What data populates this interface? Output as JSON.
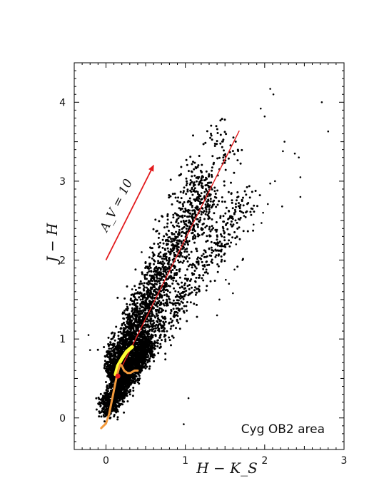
{
  "chart_data": {
    "type": "scatter",
    "xlabel": "H − K_S",
    "ylabel": "J − H",
    "xlim": [
      -0.4,
      3.0
    ],
    "ylim": [
      -0.4,
      4.5
    ],
    "xticks": [
      0,
      1,
      2,
      3
    ],
    "yticks": [
      0,
      1,
      2,
      3,
      4
    ],
    "annotation": "Cyg OB2 area",
    "reddening_vector": {
      "label": "A_V = 10",
      "start": [
        0.0,
        2.0
      ],
      "end": [
        0.6,
        3.2
      ],
      "color": "#e31a1c"
    },
    "reddening_line": {
      "start": [
        0.2,
        0.65
      ],
      "end": [
        1.68,
        3.64
      ],
      "color": "#e31a1c"
    },
    "giant_branch": {
      "color": "#ffff33",
      "points": [
        [
          0.12,
          0.55
        ],
        [
          0.15,
          0.66
        ],
        [
          0.2,
          0.75
        ],
        [
          0.26,
          0.84
        ],
        [
          0.33,
          0.9
        ]
      ]
    },
    "dwarf_sequence": {
      "color": "#f39a3c",
      "points": [
        [
          -0.06,
          -0.13
        ],
        [
          0.0,
          -0.07
        ],
        [
          0.04,
          0.05
        ],
        [
          0.08,
          0.25
        ],
        [
          0.12,
          0.45
        ],
        [
          0.14,
          0.54
        ],
        [
          0.16,
          0.62
        ],
        [
          0.18,
          0.68
        ],
        [
          0.2,
          0.66
        ],
        [
          0.23,
          0.6
        ],
        [
          0.27,
          0.57
        ],
        [
          0.31,
          0.57
        ],
        [
          0.36,
          0.6
        ],
        [
          0.4,
          0.6
        ]
      ]
    },
    "marker_point": {
      "x": 0.15,
      "y": 0.53,
      "color": "#e31a1c"
    },
    "scatter_cloud": {
      "description_color": "#000000",
      "density_model": "stars scattered along reddening direction, slope 2.0",
      "outliers": [
        [
          2.72,
          4.0
        ],
        [
          2.8,
          3.63
        ],
        [
          2.07,
          4.17
        ],
        [
          2.11,
          4.1
        ],
        [
          1.95,
          3.92
        ],
        [
          2.0,
          3.82
        ],
        [
          2.25,
          3.5
        ],
        [
          2.23,
          3.38
        ],
        [
          2.38,
          3.35
        ],
        [
          2.43,
          3.3
        ],
        [
          2.45,
          3.05
        ],
        [
          2.07,
          2.97
        ],
        [
          2.13,
          3.0
        ],
        [
          2.22,
          2.68
        ],
        [
          2.45,
          2.8
        ],
        [
          2.04,
          2.71
        ],
        [
          1.98,
          2.6
        ],
        [
          1.96,
          2.47
        ],
        [
          1.86,
          2.45
        ],
        [
          1.74,
          2.56
        ],
        [
          1.65,
          2.3
        ],
        [
          1.64,
          2.2
        ],
        [
          1.72,
          2.0
        ],
        [
          1.62,
          1.88
        ],
        [
          -0.22,
          1.05
        ],
        [
          -0.2,
          0.86
        ],
        [
          0.98,
          -0.08
        ],
        [
          1.04,
          0.25
        ],
        [
          0.33,
          1.63
        ],
        [
          0.45,
          2.1
        ],
        [
          1.43,
          1.5
        ],
        [
          1.55,
          1.7
        ],
        [
          1.6,
          1.58
        ],
        [
          1.4,
          1.3
        ],
        [
          1.51,
          1.75
        ]
      ]
    }
  }
}
